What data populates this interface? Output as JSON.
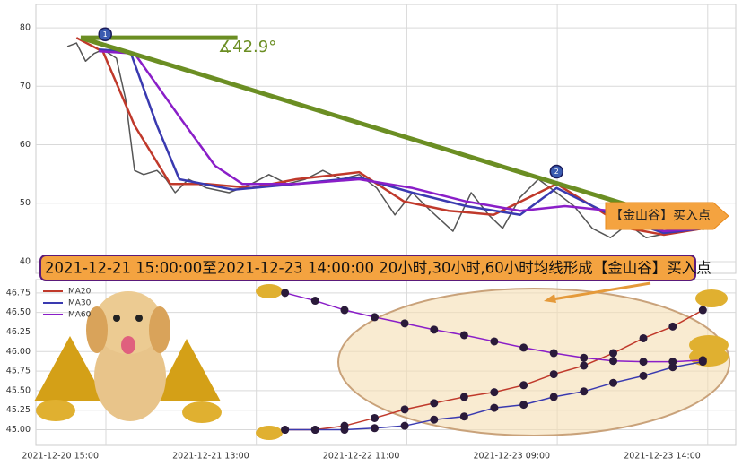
{
  "chart_data": [
    {
      "type": "line",
      "xlim": [
        0,
        100
      ],
      "ylim": [
        38,
        84
      ],
      "yticks": [
        40,
        50,
        60,
        70,
        80
      ],
      "grid": true,
      "series": [
        {
          "color": "#555555",
          "x": [
            4.5,
            5.8,
            7.1,
            8.3,
            9.6,
            11.5,
            12.8,
            14.1,
            15.4,
            17.3,
            18.6,
            19.9,
            21.8,
            24.4,
            27.6,
            30.8,
            33.3,
            35.9,
            38.5,
            41.0,
            43.6,
            46.2,
            48.7,
            51.3,
            53.8,
            56.4,
            59.6,
            62.2,
            64.7,
            66.7,
            69.2,
            71.8,
            74.4,
            76.9,
            79.5,
            82.1,
            84.6,
            87.2,
            90.4,
            93.6,
            95.5
          ],
          "values": [
            76.8,
            77.4,
            74.3,
            75.6,
            76.3,
            74.8,
            67.9,
            55.6,
            54.9,
            55.6,
            54.1,
            51.8,
            54.1,
            52.6,
            51.8,
            53.3,
            54.9,
            53.3,
            54.1,
            55.6,
            54.1,
            54.9,
            52.6,
            48.0,
            51.8,
            48.7,
            45.2,
            51.8,
            48.0,
            45.7,
            51.0,
            54.1,
            51.8,
            49.5,
            45.7,
            44.1,
            46.4,
            44.1,
            44.9,
            45.7,
            45.7
          ]
        },
        {
          "color": "#c0392b",
          "x": [
            5.8,
            9.6,
            14.1,
            19.2,
            24.4,
            30.8,
            37.2,
            46.2,
            52.6,
            59.0,
            65.4,
            74.4,
            79.5,
            84.6,
            89.7,
            95.5
          ],
          "values": [
            78.3,
            75.9,
            63.3,
            53.3,
            53.3,
            52.6,
            54.1,
            55.3,
            50.3,
            48.7,
            48.0,
            53.3,
            49.5,
            45.7,
            44.6,
            45.7
          ]
        },
        {
          "color": "#3a3ab0",
          "x": [
            9.0,
            13.5,
            17.3,
            20.5,
            28.2,
            37.2,
            46.2,
            53.8,
            61.5,
            69.2,
            74.4,
            82.1,
            89.7,
            95.5
          ],
          "values": [
            76.3,
            75.9,
            63.3,
            54.1,
            52.3,
            53.3,
            54.4,
            51.8,
            49.5,
            48.0,
            52.6,
            48.0,
            44.9,
            45.7
          ]
        },
        {
          "color": "#8a1ec8",
          "x": [
            9.0,
            14.1,
            20.5,
            25.6,
            29.5,
            37.2,
            46.2,
            53.8,
            61.5,
            69.2,
            75.6,
            82.1,
            89.7,
            95.5
          ],
          "values": [
            76.0,
            75.6,
            64.8,
            56.4,
            53.3,
            53.3,
            54.1,
            52.6,
            50.3,
            48.7,
            49.5,
            48.7,
            45.2,
            45.7
          ]
        },
        {
          "color": "#6b8e23",
          "x": [
            6.4,
            95.5
          ],
          "values": [
            78.3,
            45.7
          ]
        },
        {
          "color": "#6b8e23",
          "x": [
            6.4,
            28.8
          ],
          "values": [
            78.3,
            78.3
          ]
        }
      ],
      "angle_label": "∡42.9°",
      "buy_label": "【金山谷】买入点",
      "banner": "2021-12-21 15:00:00至2021-12-23 14:00:00 20小时,30小时,60小时均线形成【金山谷】买入点",
      "markers": [
        {
          "label": "1",
          "x": 9.9,
          "y": 78.9
        },
        {
          "label": "2",
          "x": 74.4,
          "y": 55.4
        }
      ]
    },
    {
      "type": "line",
      "xlim": [
        0,
        100
      ],
      "ylim": [
        44.8,
        46.92
      ],
      "yticks": [
        {
          "value": 45,
          "label": "45.00"
        },
        45.25,
        {
          "value": 45.5,
          "label": "45.50"
        },
        45.75,
        {
          "value": 46,
          "label": "46.00"
        },
        46.25,
        {
          "value": 46.5,
          "label": "46.50"
        },
        46.75
      ],
      "xticks": [
        {
          "value": 10,
          "label": "2021-12-20 15:00"
        },
        {
          "value": 31.5,
          "label": "2021-12-21 13:00"
        },
        {
          "value": 53,
          "label": "2021-12-22 11:00"
        },
        {
          "value": 74.5,
          "label": "2021-12-23 09:00"
        },
        {
          "value": 96,
          "label": "2021-12-23 14:00"
        }
      ],
      "grid": true,
      "legend": "upper left",
      "x": [
        35.6,
        39.9,
        44.1,
        48.4,
        52.7,
        56.9,
        61.2,
        65.5,
        69.7,
        74.0,
        78.3,
        82.5,
        86.8,
        91.0,
        95.3
      ],
      "series": [
        {
          "name": "MA20",
          "color": "#c0392b",
          "values": [
            45.0,
            45.0,
            45.05,
            45.15,
            45.26,
            45.34,
            45.42,
            45.48,
            45.57,
            45.71,
            45.82,
            45.98,
            46.17,
            46.32,
            46.53
          ]
        },
        {
          "name": "MA30",
          "color": "#3a3ab0",
          "values": [
            45.0,
            45.0,
            45.0,
            45.02,
            45.05,
            45.13,
            45.17,
            45.28,
            45.32,
            45.42,
            45.49,
            45.6,
            45.69,
            45.8,
            45.87
          ]
        },
        {
          "name": "MA60",
          "color": "#8a1ec8",
          "values": [
            46.75,
            46.65,
            46.53,
            46.44,
            46.36,
            46.28,
            46.21,
            46.13,
            46.05,
            45.98,
            45.92,
            45.88,
            45.87,
            45.87,
            45.89
          ]
        }
      ]
    }
  ]
}
